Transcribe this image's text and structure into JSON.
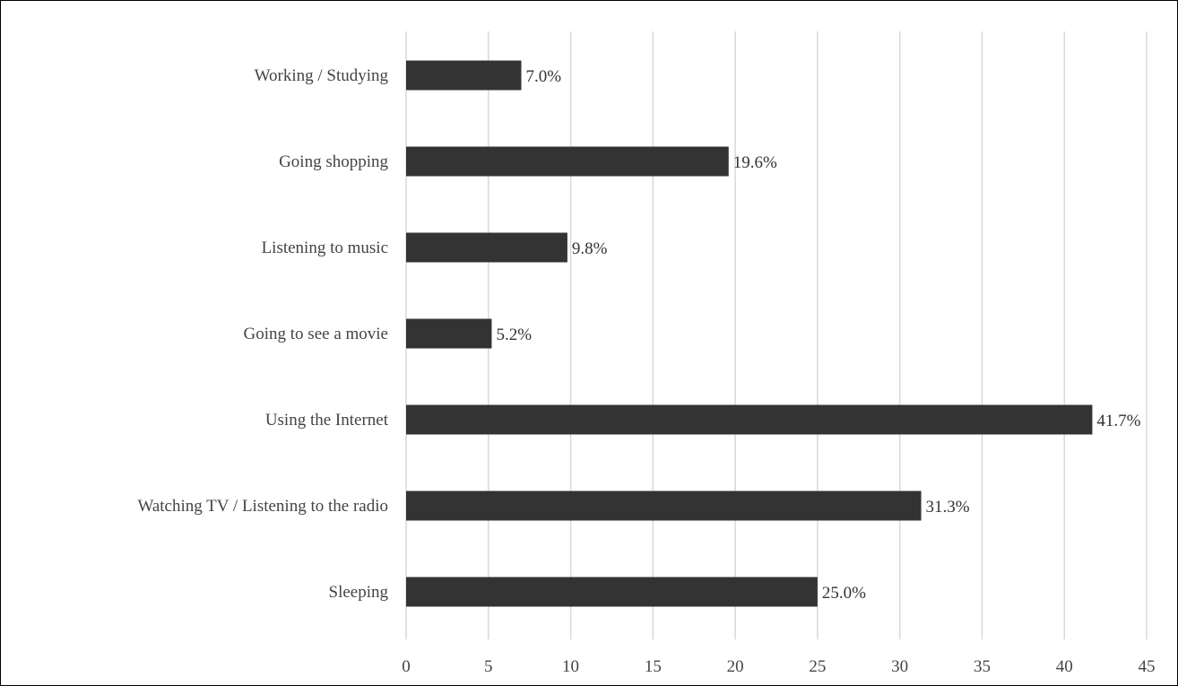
{
  "chart_data": {
    "type": "bar",
    "orientation": "horizontal",
    "categories": [
      "Working / Studying",
      "Going shopping",
      "Listening to music",
      "Going to see a movie",
      "Using the Internet",
      "Watching TV / Listening to the radio",
      "Sleeping"
    ],
    "values": [
      7.0,
      19.6,
      9.8,
      5.2,
      41.7,
      31.3,
      25.0
    ],
    "value_labels": [
      "7.0%",
      "19.6%",
      "9.8%",
      "5.2%",
      "41.7%",
      "31.3%",
      "25.0%"
    ],
    "xticks": [
      "0",
      "5",
      "10",
      "15",
      "20",
      "25",
      "30",
      "35",
      "40",
      "45"
    ],
    "xlim": [
      0,
      45
    ],
    "grid": true,
    "legend": "none",
    "bar_color": "#333333",
    "grid_color": "#d9d9d9"
  }
}
